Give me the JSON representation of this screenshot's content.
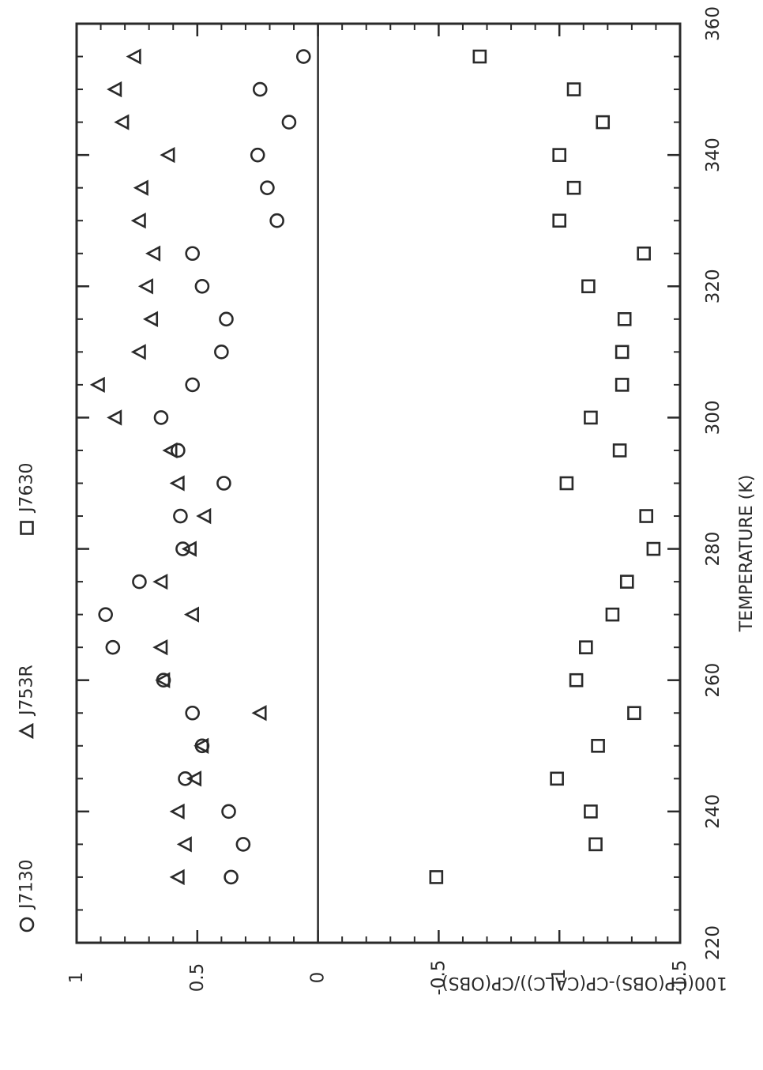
{
  "chart_data": {
    "type": "scatter",
    "xlabel": "TEMPERATURE (K)",
    "ylabel": "100(CP(OBS)-CP(CALC))/CP(OBS)",
    "xlim": [
      220,
      360
    ],
    "ylim": [
      -1.5,
      1
    ],
    "x_ticks": [
      "220",
      "240",
      "260",
      "280",
      "300",
      "320",
      "340",
      "360"
    ],
    "y_ticks": [
      "-1.5",
      "-1",
      "-0.5",
      "0",
      "0.5",
      "1"
    ],
    "x_tick_values": [
      220,
      240,
      260,
      280,
      300,
      320,
      340,
      360
    ],
    "y_tick_values": [
      -1.5,
      -1,
      -0.5,
      0,
      0.5,
      1
    ],
    "reference_line_y": 0,
    "legend_position": "top (rotated)",
    "series": [
      {
        "name": "J7130",
        "marker": "circle",
        "points": [
          [
            230,
            0.36
          ],
          [
            235,
            0.31
          ],
          [
            240,
            0.37
          ],
          [
            245,
            0.55
          ],
          [
            250,
            0.48
          ],
          [
            255,
            0.52
          ],
          [
            260,
            0.64
          ],
          [
            265,
            0.85
          ],
          [
            270,
            0.88
          ],
          [
            275,
            0.74
          ],
          [
            280,
            0.56
          ],
          [
            285,
            0.57
          ],
          [
            290,
            0.39
          ],
          [
            295,
            0.58
          ],
          [
            300,
            0.65
          ],
          [
            305,
            0.52
          ],
          [
            310,
            0.4
          ],
          [
            315,
            0.38
          ],
          [
            320,
            0.48
          ],
          [
            325,
            0.52
          ],
          [
            330,
            0.17
          ],
          [
            335,
            0.21
          ],
          [
            340,
            0.25
          ],
          [
            345,
            0.12
          ],
          [
            350,
            0.24
          ],
          [
            355,
            0.06
          ]
        ]
      },
      {
        "name": "J753R",
        "marker": "triangle",
        "points": [
          [
            230,
            0.58
          ],
          [
            235,
            0.55
          ],
          [
            240,
            0.58
          ],
          [
            245,
            0.51
          ],
          [
            250,
            0.48
          ],
          [
            255,
            0.24
          ],
          [
            260,
            0.64
          ],
          [
            265,
            0.65
          ],
          [
            270,
            0.52
          ],
          [
            275,
            0.65
          ],
          [
            280,
            0.53
          ],
          [
            285,
            0.47
          ],
          [
            290,
            0.58
          ],
          [
            295,
            0.61
          ],
          [
            300,
            0.84
          ],
          [
            305,
            0.91
          ],
          [
            310,
            0.74
          ],
          [
            315,
            0.69
          ],
          [
            320,
            0.71
          ],
          [
            325,
            0.68
          ],
          [
            330,
            0.74
          ],
          [
            335,
            0.73
          ],
          [
            340,
            0.62
          ],
          [
            345,
            0.81
          ],
          [
            350,
            0.84
          ],
          [
            355,
            0.76
          ]
        ]
      },
      {
        "name": "J7630",
        "marker": "square",
        "points": [
          [
            230,
            -0.49
          ],
          [
            235,
            -1.15
          ],
          [
            240,
            -1.13
          ],
          [
            245,
            -0.99
          ],
          [
            250,
            -1.16
          ],
          [
            255,
            -1.31
          ],
          [
            260,
            -1.07
          ],
          [
            265,
            -1.11
          ],
          [
            270,
            -1.22
          ],
          [
            275,
            -1.28
          ],
          [
            280,
            -1.39
          ],
          [
            285,
            -1.36
          ],
          [
            290,
            -1.03
          ],
          [
            295,
            -1.25
          ],
          [
            300,
            -1.13
          ],
          [
            305,
            -1.26
          ],
          [
            310,
            -1.26
          ],
          [
            315,
            -1.27
          ],
          [
            320,
            -1.12
          ],
          [
            325,
            -1.35
          ],
          [
            330,
            -1.0
          ],
          [
            335,
            -1.06
          ],
          [
            340,
            -1.0
          ],
          [
            345,
            -1.18
          ],
          [
            350,
            -1.06
          ],
          [
            355,
            -0.67
          ]
        ]
      }
    ]
  }
}
